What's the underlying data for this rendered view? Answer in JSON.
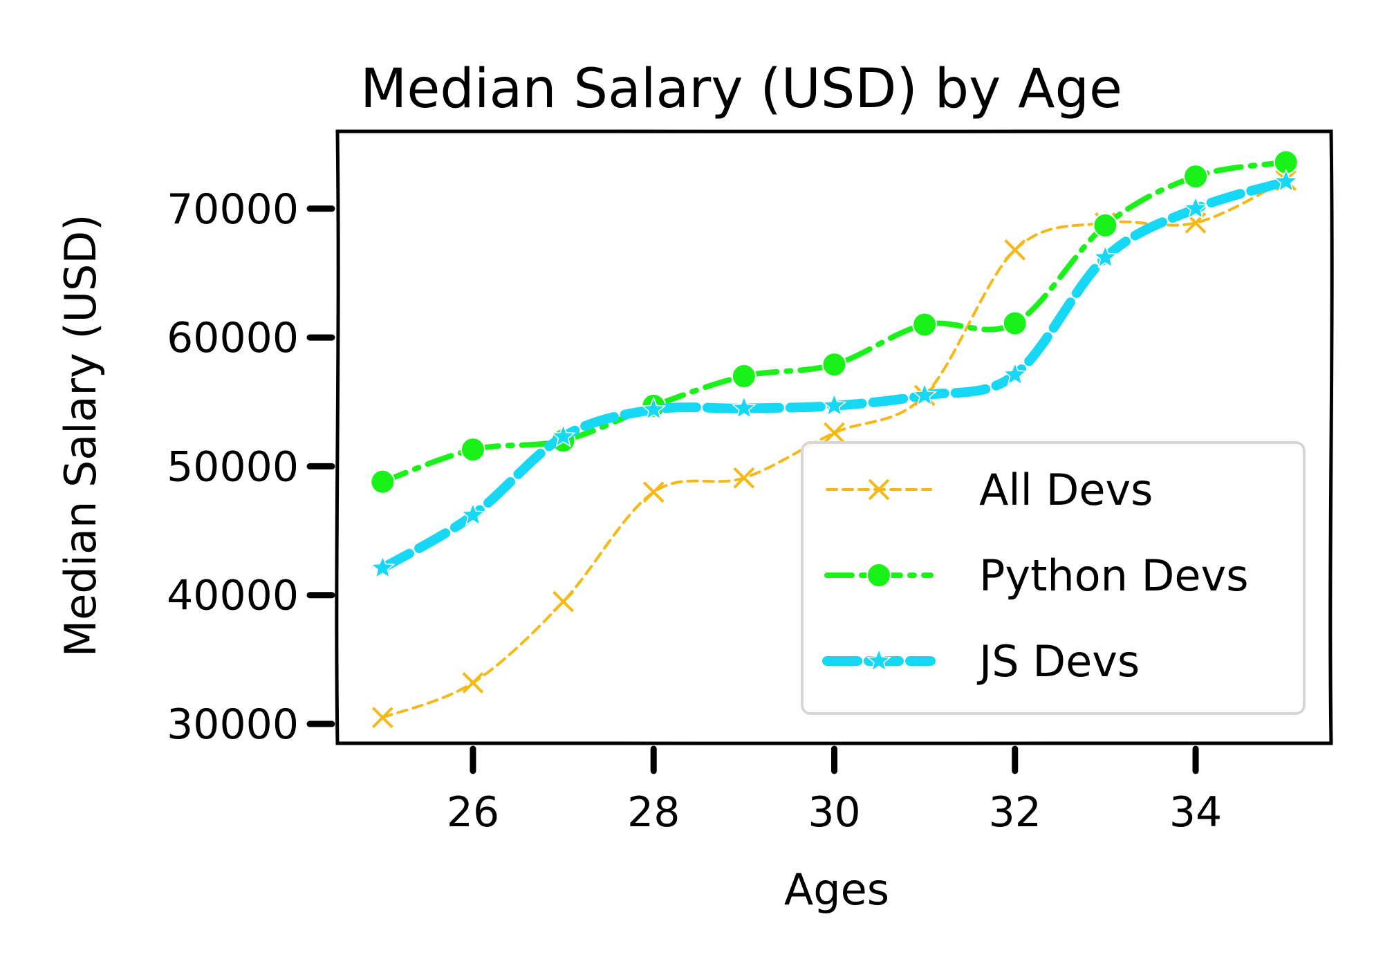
{
  "chart_data": {
    "type": "line",
    "title": "Median Salary (USD) by Age",
    "xlabel": "Ages",
    "ylabel": "Median Salary (USD)",
    "x": [
      25,
      26,
      27,
      28,
      29,
      30,
      31,
      32,
      33,
      34,
      35
    ],
    "xticks": [
      26,
      28,
      30,
      32,
      34
    ],
    "yticks": [
      30000,
      40000,
      50000,
      60000,
      70000
    ],
    "xlim": [
      24.5,
      35.5
    ],
    "ylim": [
      28500,
      76000
    ],
    "grid": false,
    "legend_position": "lower-right",
    "series": [
      {
        "name": "All Devs",
        "color": "#f5b815",
        "marker": "x-icon",
        "style": "dashed-thin",
        "values": [
          30500,
          33200,
          39500,
          48000,
          49100,
          52600,
          55500,
          66800,
          68900,
          68900,
          72200
        ]
      },
      {
        "name": "Python Devs",
        "color": "#18f218",
        "marker": "circle-icon",
        "style": "dashdot-medium",
        "values": [
          48800,
          51300,
          52000,
          54700,
          57000,
          57900,
          61000,
          61100,
          68700,
          72500,
          73600
        ]
      },
      {
        "name": "JS Devs",
        "color": "#16d8f5",
        "marker": "star-icon",
        "style": "dashed-thick",
        "values": [
          42100,
          46200,
          52300,
          54400,
          54500,
          54700,
          55500,
          57100,
          66200,
          70000,
          72100
        ]
      }
    ]
  }
}
